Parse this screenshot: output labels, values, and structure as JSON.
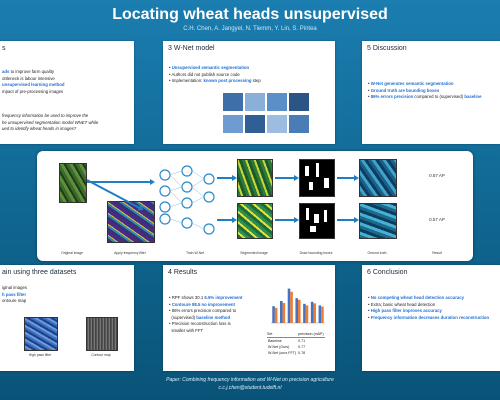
{
  "poster": {
    "title": "Locating wheat heads unsupervised",
    "authors": "C.H. Chen, A. Jangyel, N. Tiemm, Y. Lin, S. Pintea"
  },
  "panel_intro": {
    "title": "s",
    "bullets": [
      {
        "bold": "ads",
        "text": " to improve farm quality"
      },
      {
        "bold": "",
        "text": "ottleneck is labour intensive"
      },
      {
        "bold": "",
        "text": "unsupervised learning method"
      },
      {
        "bold": "",
        "text": "mpact of pre-processing images"
      }
    ],
    "quote": [
      "frequency information be used to improve the",
      "he unsupervised segmentation model WNET while",
      "ued to identify wheat heads in images?"
    ]
  },
  "panel_wnet": {
    "title": "3 W-Net model",
    "bullets": [
      {
        "bold": "Unsupervised semantic segmentation",
        "text": ""
      },
      {
        "bold": "",
        "text": "Authors did not publish source code"
      },
      {
        "bold": "",
        "text": "Implementation: ",
        "tail": "known post processing",
        "tail2": " step"
      }
    ]
  },
  "panel_discussion": {
    "title": "5 Discussion",
    "bullets": [
      {
        "bold": "W-Net generates semantic segmentation",
        "text": ""
      },
      {
        "bold": "Ground truth are bounding boxes",
        "text": ""
      },
      {
        "bold": "",
        "text": "",
        "tail": "86% errors precision",
        "tail2": " compared to (supervised) ",
        "tail3": "baseline"
      }
    ]
  },
  "flow": {
    "labels": [
      "Original image",
      "Apply frequency filter",
      "Train W-Net",
      "Segmented image",
      "Draw bounding boxes",
      "Ground truth",
      "Result"
    ],
    "scores": [
      "0.57 AP",
      "0.57 AP"
    ]
  },
  "panel_datasets": {
    "title": "ain using three datasets",
    "bullets": [
      {
        "bold": "",
        "text": "iginal images"
      },
      {
        "bold": "",
        "text": "h pass filter"
      },
      {
        "bold": "",
        "text": "ontoure map"
      }
    ],
    "captions": [
      "High pass filter",
      "Contour map"
    ]
  },
  "panel_results": {
    "title": "4 Results",
    "bullets": [
      {
        "bold": "",
        "text": "RPF shows 30.1 ",
        "tail": "6.5% improvement"
      },
      {
        "bold": "Contoure 88.5 no improvement",
        "text": ""
      },
      {
        "bold": "",
        "text": "86% errors precision compared to"
      },
      {
        "bold": "",
        "text": "(supervised) ",
        "tail": "baseline method"
      },
      {
        "bold": "",
        "text": "Precision reconstruction loss is"
      },
      {
        "bold": "",
        "text": "smaller with FFT"
      }
    ],
    "table": {
      "headers": [
        "Set",
        "precision (mAP)"
      ],
      "rows": [
        [
          "Baseline",
          "0.71"
        ],
        [
          "W-Net (Ours)",
          "0.77"
        ],
        [
          "W-Net (ours FFT)",
          "0.78"
        ]
      ]
    }
  },
  "panel_conclusion": {
    "title": "6 Conclusion",
    "bullets": [
      {
        "bold": "No competing wheat head detection accuracy",
        "text": ""
      },
      {
        "bold": "",
        "text": "Extra; basic wheat head detection"
      },
      {
        "bold": "High pass filter improves accuracy",
        "text": ""
      },
      {
        "bold": "Frequency information decreases duration reconstruction",
        "text": ""
      }
    ]
  },
  "chart_data": {
    "type": "bar",
    "categories": [
      "1",
      "2",
      "3",
      "4",
      "5",
      "6",
      "7"
    ],
    "series": [
      {
        "name": "",
        "color": "#4472c4",
        "values": [
          0.42,
          0.55,
          0.86,
          0.62,
          0.48,
          0.53,
          0.44
        ]
      },
      {
        "name": "",
        "color": "#ed7d31",
        "values": [
          0.38,
          0.5,
          0.78,
          0.58,
          0.44,
          0.49,
          0.41
        ]
      }
    ],
    "ylim": [
      0,
      1
    ],
    "title": "",
    "xlabel": "",
    "ylabel": ""
  },
  "footer": {
    "line1": "Paper: Combining frequency information and W-Net on precision agriculture",
    "line2": "c.c.j.chen@student.tudelft.nl"
  }
}
